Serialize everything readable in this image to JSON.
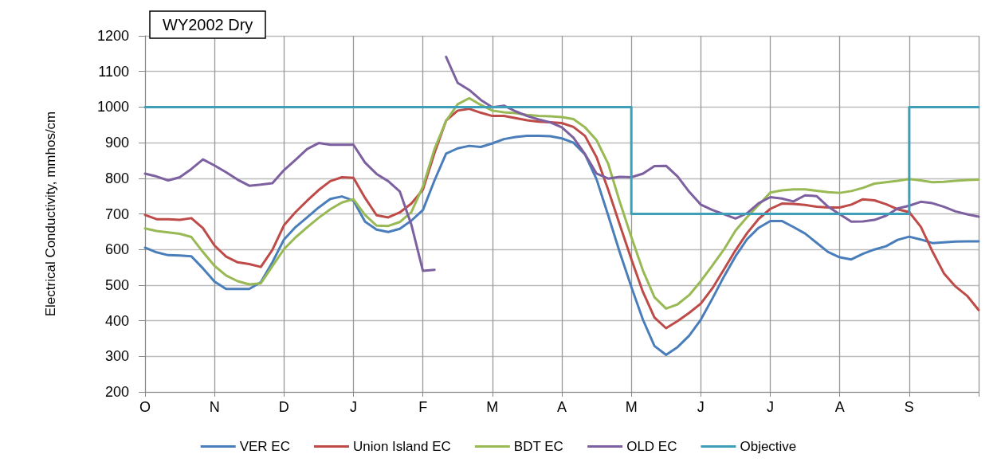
{
  "chart_data": {
    "type": "line",
    "title": "WY2002 Dry",
    "ylabel": "Electrical Conductivity, mmhos/cm",
    "categories": [
      "O",
      null,
      null,
      null,
      null,
      null,
      "N",
      null,
      null,
      null,
      null,
      null,
      "D",
      null,
      null,
      null,
      null,
      null,
      "J",
      null,
      null,
      null,
      null,
      null,
      "F",
      null,
      null,
      null,
      null,
      null,
      "M",
      null,
      null,
      null,
      null,
      null,
      "A",
      null,
      null,
      null,
      null,
      null,
      "M",
      null,
      null,
      null,
      null,
      null,
      "J",
      null,
      null,
      null,
      null,
      null,
      "J",
      null,
      null,
      null,
      null,
      null,
      "A",
      null,
      null,
      null,
      null,
      null,
      "S",
      null,
      null,
      null,
      null,
      null,
      null
    ],
    "ylim": [
      200,
      1200
    ],
    "yticks": [
      200,
      300,
      400,
      500,
      600,
      700,
      800,
      900,
      1000,
      1100,
      1200
    ],
    "grid": true,
    "legend": "bottom",
    "marker": "none",
    "line_style": "solid",
    "series": [
      {
        "name": "VER EC",
        "color": "#4a7ebb",
        "values": [
          605,
          592,
          584,
          583,
          581,
          547,
          510,
          489,
          489,
          489,
          508,
          564,
          628,
          663,
          690,
          718,
          742,
          749,
          737,
          678,
          656,
          649,
          658,
          681,
          711,
          794,
          869,
          884,
          891,
          888,
          898,
          910,
          916,
          919,
          919,
          918,
          912,
          900,
          867,
          797,
          696,
          592,
          495,
          403,
          329,
          304,
          326,
          358,
          403,
          462,
          524,
          581,
          629,
          661,
          680,
          680,
          663,
          645,
          619,
          593,
          578,
          572,
          588,
          600,
          609,
          627,
          636,
          628,
          618,
          620,
          622,
          623,
          623
        ]
      },
      {
        "name": "Union Island EC",
        "color": "#be4b48",
        "values": [
          697,
          685,
          685,
          683,
          688,
          660,
          611,
          580,
          564,
          559,
          551,
          599,
          668,
          705,
          737,
          767,
          792,
          803,
          801,
          745,
          696,
          690,
          704,
          729,
          768,
          871,
          962,
          990,
          995,
          984,
          975,
          975,
          969,
          963,
          959,
          957,
          955,
          944,
          919,
          859,
          768,
          670,
          573,
          481,
          409,
          379,
          399,
          422,
          448,
          491,
          544,
          598,
          646,
          686,
          714,
          729,
          728,
          725,
          720,
          718,
          718,
          726,
          741,
          738,
          727,
          713,
          705,
          664,
          595,
          533,
          496,
          470,
          430
        ]
      },
      {
        "name": "BDT EC",
        "color": "#98b954",
        "values": [
          659,
          652,
          648,
          644,
          635,
          593,
          554,
          527,
          511,
          502,
          505,
          553,
          601,
          634,
          662,
          689,
          713,
          732,
          741,
          697,
          667,
          666,
          677,
          705,
          777,
          882,
          961,
          1008,
          1025,
          1006,
          990,
          985,
          983,
          978,
          975,
          974,
          972,
          966,
          943,
          907,
          841,
          734,
          635,
          541,
          466,
          434,
          446,
          472,
          511,
          555,
          600,
          653,
          691,
          725,
          760,
          766,
          769,
          769,
          765,
          761,
          759,
          764,
          773,
          785,
          789,
          793,
          798,
          794,
          789,
          790,
          793,
          795,
          796
        ]
      },
      {
        "name": "OLD EC",
        "color": "#7d60a0",
        "values": [
          813,
          805,
          794,
          803,
          826,
          853,
          836,
          817,
          796,
          779,
          782,
          786,
          823,
          852,
          882,
          899,
          894,
          894,
          894,
          844,
          812,
          792,
          763,
          670,
          540,
          543,
          null,
          null,
          null,
          null,
          null,
          null,
          null,
          null,
          null,
          null,
          null,
          null,
          null,
          null,
          null,
          null,
          null,
          null,
          null,
          null,
          null,
          null,
          null,
          null,
          null,
          null,
          null,
          null,
          null,
          null,
          null,
          null,
          null,
          null,
          null,
          null,
          null,
          null,
          null,
          null,
          null,
          null,
          null,
          null,
          null,
          null,
          null
        ]
      },
      {
        "color": "#7d60a0",
        "values": [
          null,
          null,
          null,
          null,
          null,
          null,
          null,
          null,
          null,
          null,
          null,
          null,
          null,
          null,
          null,
          null,
          null,
          null,
          null,
          null,
          null,
          null,
          null,
          null,
          null,
          null,
          1141,
          1068,
          1048,
          1020,
          999,
          1004,
          988,
          975,
          965,
          957,
          943,
          914,
          868,
          813,
          799,
          804,
          803,
          813,
          834,
          835,
          805,
          762,
          726,
          711,
          699,
          687,
          702,
          730,
          747,
          743,
          735,
          752,
          750,
          720,
          699,
          678,
          679,
          683,
          695,
          715,
          723,
          734,
          730,
          720,
          707,
          699,
          692
        ]
      },
      {
        "name": "Objective",
        "type": "step",
        "color": "#3f9fb8",
        "values": [
          1000,
          1000,
          1000,
          1000,
          1000,
          1000,
          1000,
          1000,
          1000,
          1000,
          1000,
          1000,
          1000,
          1000,
          1000,
          1000,
          1000,
          1000,
          1000,
          1000,
          1000,
          1000,
          1000,
          1000,
          1000,
          1000,
          1000,
          1000,
          1000,
          1000,
          1000,
          1000,
          1000,
          1000,
          1000,
          1000,
          1000,
          1000,
          1000,
          1000,
          1000,
          1000,
          700,
          700,
          700,
          700,
          700,
          700,
          700,
          700,
          700,
          700,
          700,
          700,
          700,
          700,
          700,
          700,
          700,
          700,
          700,
          700,
          700,
          700,
          700,
          700,
          1000,
          1000,
          1000,
          1000,
          1000,
          1000,
          1000
        ]
      }
    ]
  }
}
